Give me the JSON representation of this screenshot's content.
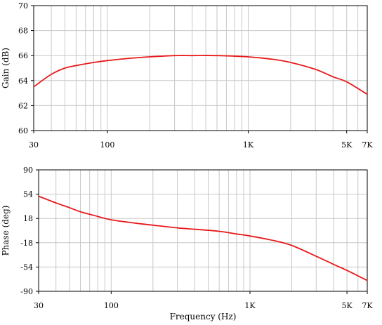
{
  "chart_data": [
    {
      "type": "line",
      "xscale": "log",
      "xlim": [
        30,
        7000
      ],
      "ylim": [
        60,
        70
      ],
      "ylabel": "Gain (dB)",
      "xlabel": "",
      "grid": true,
      "x_ticks": [
        {
          "value": 30,
          "label": "30"
        },
        {
          "value": 100,
          "label": "100"
        },
        {
          "value": 1000,
          "label": "1K"
        },
        {
          "value": 5000,
          "label": "5K"
        },
        {
          "value": 7000,
          "label": "7K"
        }
      ],
      "y_ticks": [
        {
          "value": 60,
          "label": "60"
        },
        {
          "value": 62,
          "label": "62"
        },
        {
          "value": 64,
          "label": "64"
        },
        {
          "value": 66,
          "label": "66"
        },
        {
          "value": 68,
          "label": "68"
        },
        {
          "value": 70,
          "label": "70"
        }
      ],
      "series": [
        {
          "color": "#e8191a",
          "x": [
            30,
            40,
            50,
            60,
            80,
            100,
            150,
            200,
            300,
            400,
            600,
            1000,
            1500,
            2000,
            3000,
            4000,
            5000,
            7000
          ],
          "y": [
            63.5,
            64.5,
            65.0,
            65.2,
            65.45,
            65.6,
            65.8,
            65.9,
            66.0,
            66.0,
            66.0,
            65.9,
            65.7,
            65.45,
            64.9,
            64.3,
            63.9,
            62.9
          ]
        }
      ]
    },
    {
      "type": "line",
      "xscale": "log",
      "xlim": [
        30,
        7000
      ],
      "ylim": [
        -90,
        90
      ],
      "ylabel": "Phase (deg)",
      "xlabel": "Frequency (Hz)",
      "grid": true,
      "x_ticks": [
        {
          "value": 30,
          "label": "30"
        },
        {
          "value": 100,
          "label": "100"
        },
        {
          "value": 1000,
          "label": "1K"
        },
        {
          "value": 5000,
          "label": "5K"
        },
        {
          "value": 7000,
          "label": "7K"
        }
      ],
      "y_ticks": [
        {
          "value": -90,
          "label": "-90"
        },
        {
          "value": -54,
          "label": "-54"
        },
        {
          "value": -18,
          "label": "-18"
        },
        {
          "value": 18,
          "label": "18"
        },
        {
          "value": 54,
          "label": "54"
        },
        {
          "value": 90,
          "label": "90"
        }
      ],
      "series": [
        {
          "color": "#e8191a",
          "x": [
            30,
            40,
            50,
            60,
            80,
            100,
            150,
            200,
            300,
            400,
            600,
            800,
            1000,
            1500,
            2000,
            3000,
            4000,
            5000,
            7000
          ],
          "y": [
            51,
            41,
            34,
            28,
            21,
            16,
            11,
            8,
            4,
            2,
            -1,
            -5,
            -8,
            -15,
            -22,
            -38,
            -50,
            -59,
            -74
          ]
        }
      ]
    }
  ]
}
